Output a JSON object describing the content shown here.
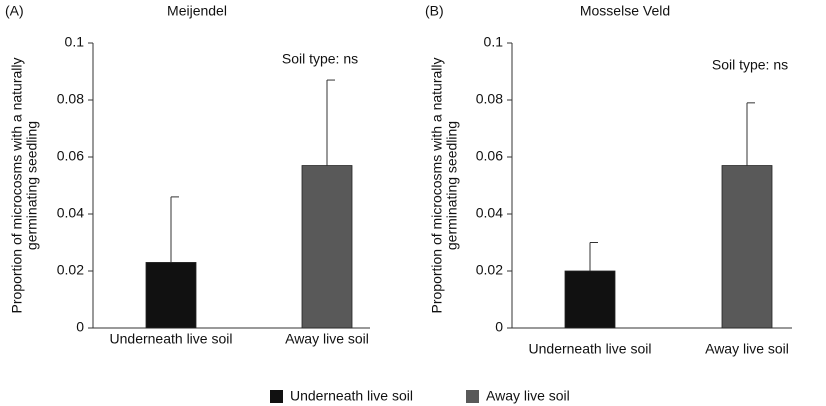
{
  "chart_data": [
    {
      "type": "bar",
      "panel_label": "(A)",
      "title": "Meijendel",
      "y_label": [
        "Proportion of microcosms with a naturally",
        "germinating seedling"
      ],
      "annotation": "Soil type: ns",
      "categories": [
        "Underneath live soil",
        "Away live soil"
      ],
      "values": [
        0.023,
        0.057
      ],
      "errors": [
        0.023,
        0.03
      ],
      "colors": [
        "#111111",
        "#595959"
      ],
      "ylim": [
        0,
        0.1
      ],
      "yticks": [
        0,
        0.02,
        0.04,
        0.06,
        0.08,
        0.1
      ]
    },
    {
      "type": "bar",
      "panel_label": "(B)",
      "title": "Mosselse Veld",
      "y_label": [
        "Proportion of microcosms with a naturally",
        "germinating seedling"
      ],
      "annotation": "Soil type: ns",
      "categories": [
        "Underneath live soil",
        "Away live soil"
      ],
      "values": [
        0.02,
        0.057
      ],
      "errors": [
        0.01,
        0.022
      ],
      "colors": [
        "#111111",
        "#595959"
      ],
      "ylim": [
        0,
        0.1
      ],
      "yticks": [
        0,
        0.02,
        0.04,
        0.06,
        0.08,
        0.1
      ]
    }
  ],
  "legend": [
    {
      "name": "Underneath live soil",
      "color": "#111111"
    },
    {
      "name": "Away live soil",
      "color": "#595959"
    }
  ]
}
